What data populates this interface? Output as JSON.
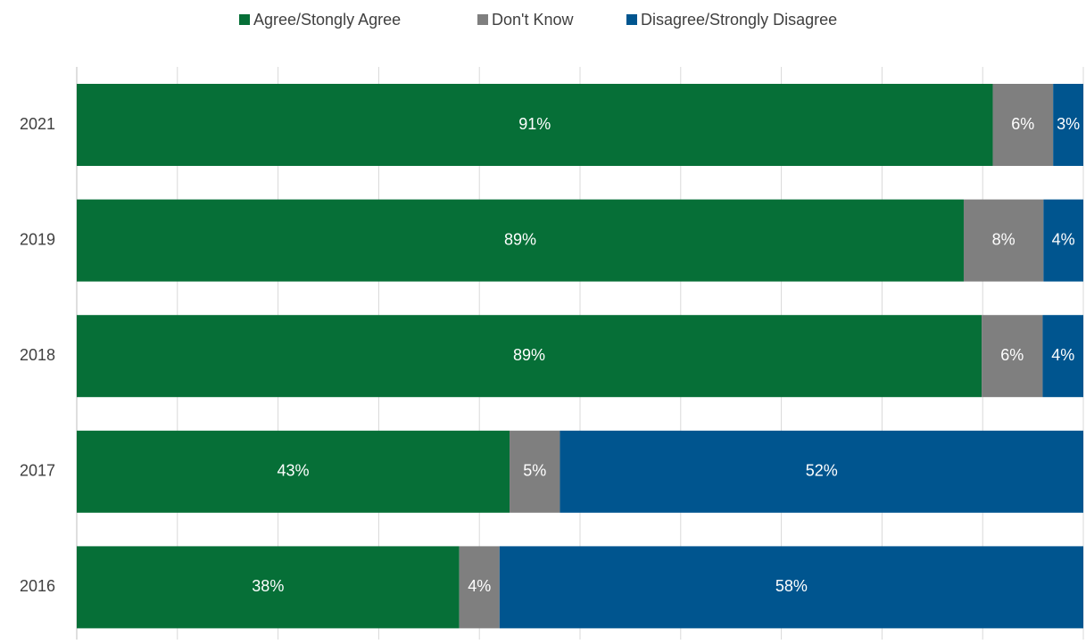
{
  "chart_data": {
    "type": "bar",
    "orientation": "horizontal",
    "stacking": "percent",
    "categories": [
      "2021",
      "2019",
      "2018",
      "2017",
      "2016"
    ],
    "series": [
      {
        "name": "Agree/Stongly Agree",
        "color": "#066f37",
        "values": [
          91,
          89,
          89,
          43,
          38
        ],
        "value_labels": [
          "91%",
          "89%",
          "89%",
          "43%",
          "38%"
        ]
      },
      {
        "name": "Don't Know",
        "color": "#7f7f7f",
        "values": [
          6,
          8,
          6,
          5,
          4
        ],
        "value_labels": [
          "6%",
          "8%",
          "6%",
          "5%",
          "4%"
        ]
      },
      {
        "name": "Disagree/Strongly Disagree",
        "color": "#00558f",
        "values": [
          3,
          4,
          4,
          52,
          58
        ],
        "value_labels": [
          "3%",
          "4%",
          "4%",
          "52%",
          "58%"
        ]
      }
    ],
    "xlim": [
      0,
      100
    ],
    "xticks": [
      0,
      10,
      20,
      30,
      40,
      50,
      60,
      70,
      80,
      90,
      100
    ],
    "grid": true,
    "legend": "top"
  }
}
